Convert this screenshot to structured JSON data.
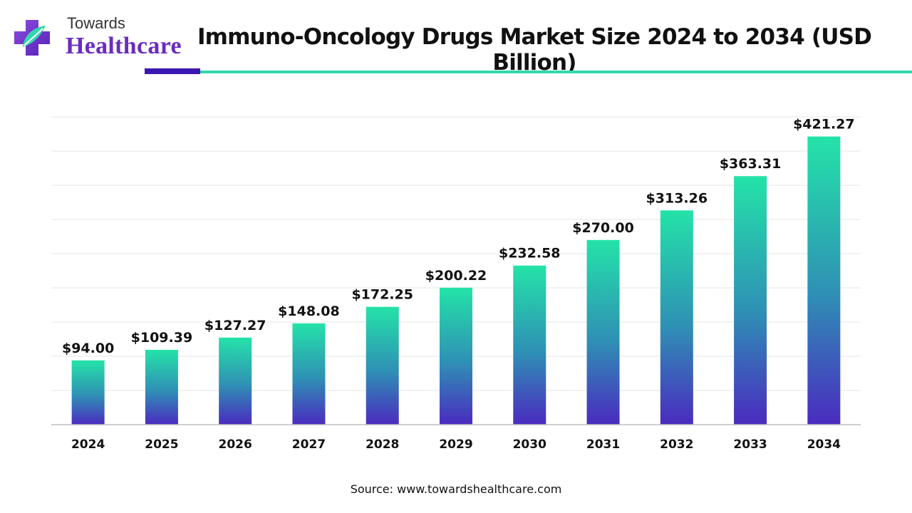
{
  "brand": {
    "line1": "Towards",
    "line2": "Healthcare",
    "colors": {
      "purple": "#6a2cc1",
      "teal": "#33d6ac",
      "dark_blue": "#3a17b0"
    }
  },
  "title": "Immuno-Oncology Drugs Market Size 2024 to 2034 (USD Billion)",
  "source": "Source: www.towardshealthcare.com",
  "chart_data": {
    "type": "bar",
    "title": "Immuno-Oncology Drugs Market Size 2024 to 2034 (USD Billion)",
    "xlabel": "",
    "ylabel": "",
    "categories": [
      "2024",
      "2025",
      "2026",
      "2027",
      "2028",
      "2029",
      "2030",
      "2031",
      "2032",
      "2033",
      "2034"
    ],
    "values": [
      94.0,
      109.39,
      127.27,
      148.08,
      172.25,
      200.22,
      232.58,
      270.0,
      313.26,
      363.31,
      421.27
    ],
    "labels": [
      "$94.00",
      "$109.39",
      "$127.27",
      "$148.08",
      "$172.25",
      "$200.22",
      "$232.58",
      "$270.00",
      "$313.26",
      "$363.31",
      "$421.27"
    ],
    "ylim": [
      0,
      450
    ],
    "grid": true,
    "legend": "none",
    "bar_gradient": {
      "top": "#24e3a8",
      "middle": "#2f8fb5",
      "bottom": "#4a2bbf"
    }
  }
}
